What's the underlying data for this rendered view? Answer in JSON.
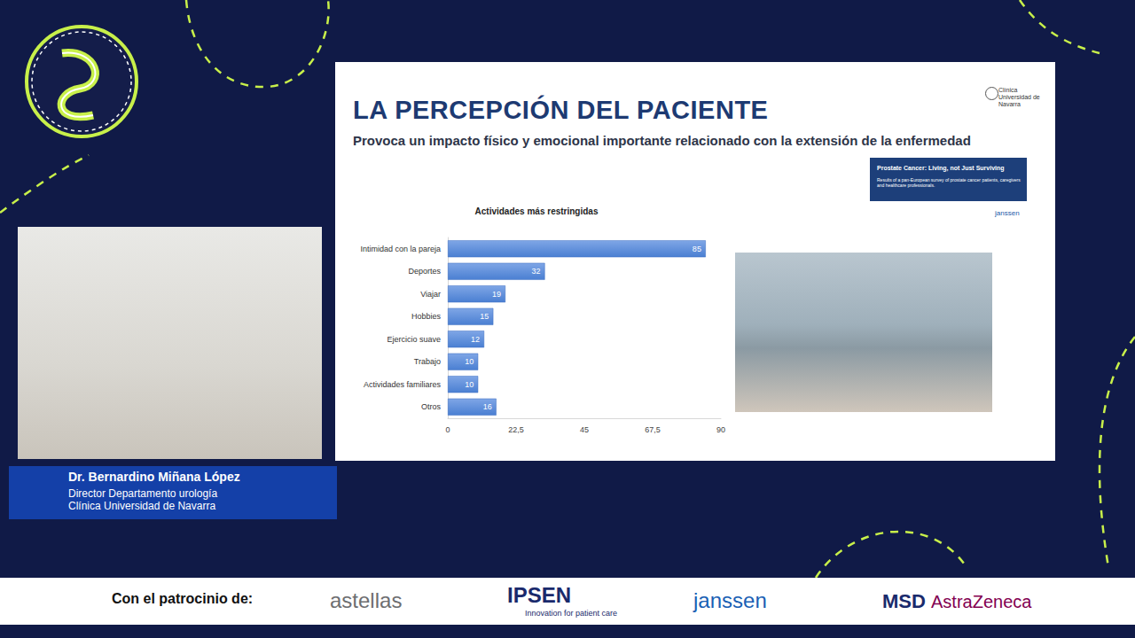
{
  "chart_data": {
    "type": "bar",
    "orientation": "horizontal",
    "title": "Actividades más restringidas",
    "categories": [
      "Intimidad con la pareja",
      "Deportes",
      "Viajar",
      "Hobbies",
      "Ejercicio suave",
      "Trabajo",
      "Actividades familiares",
      "Otros"
    ],
    "values": [
      85,
      32,
      19,
      15,
      12,
      10,
      10,
      16
    ],
    "color": "#4a7fd2",
    "xlim": [
      0,
      90
    ],
    "xticks": [
      0,
      {
        "value": 22.5,
        "label": "22,5"
      },
      45,
      {
        "value": 67.5,
        "label": "67,5"
      },
      90
    ],
    "grid": false,
    "data_labels": true
  },
  "page": {
    "slide": {
      "title": "LA PERCEPCIÓN DEL PACIENTE",
      "subtitle": "Provoca un impacto físico y emocional importante relacionado con la extensión de la enfermedad",
      "institution": "Clínica Universidad de Navarra",
      "report": {
        "title": "Prostate Cancer: Living, not Just Surviving",
        "text": "Results of a pan-European survey of prostate cancer patients, caregivers and healthcare professionals.",
        "brand": "janssen"
      }
    },
    "speaker": {
      "name": "Dr. Bernardino Miñana López",
      "role": "Director Departamento urología",
      "institution": "Clínica Universidad de Navarra"
    },
    "sponsors": {
      "label": "Con el patrocinio de:",
      "names": [
        "astellas",
        "IPSEN",
        "janssen",
        "MSD",
        "AstraZeneca"
      ],
      "tagline": "Innovation for patient care"
    }
  }
}
